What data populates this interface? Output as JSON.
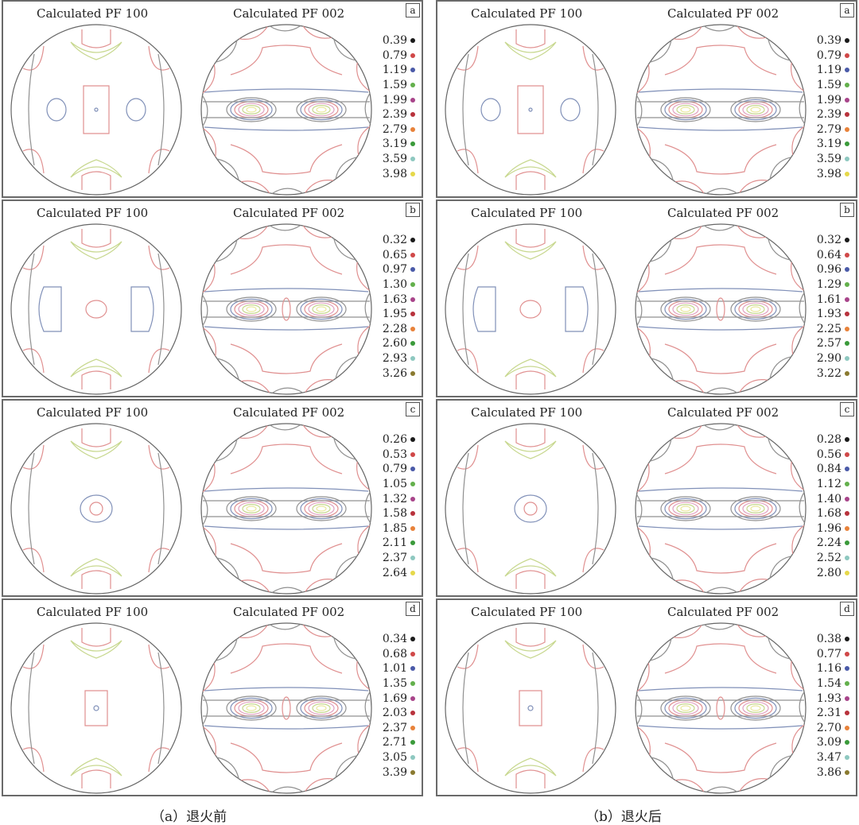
{
  "panel_title_left": "Calculated PF 100",
  "panel_title_right": "Calculated PF 002",
  "level_colors": [
    "#1a1a1a",
    "#d04848",
    "#4a5aa8",
    "#63b04c",
    "#a8448a",
    "#b8323c",
    "#e8823a",
    "#3a9a3a",
    "#8ec8c0",
    "#e6d84a"
  ],
  "level_colors_alt_last": "#8a7a30",
  "contour_colors": {
    "red": "#e09090",
    "blue": "#8090b8",
    "yellow": "#c8d890",
    "gray": "#909090",
    "pink": "#e0a0c0",
    "cream": "#eae8a0"
  },
  "columns": [
    {
      "caption": "（a）退火前",
      "rows": [
        {
          "letter": "a",
          "legend": [
            "0.39",
            "0.79",
            "1.19",
            "1.59",
            "1.99",
            "2.39",
            "2.79",
            "3.19",
            "3.59",
            "3.98"
          ]
        },
        {
          "letter": "b",
          "legend": [
            "0.32",
            "0.65",
            "0.97",
            "1.30",
            "1.63",
            "1.95",
            "2.28",
            "2.60",
            "2.93",
            "3.26"
          ]
        },
        {
          "letter": "c",
          "legend": [
            "0.26",
            "0.53",
            "0.79",
            "1.05",
            "1.32",
            "1.58",
            "1.85",
            "2.11",
            "2.37",
            "2.64"
          ]
        },
        {
          "letter": "d",
          "legend": [
            "0.34",
            "0.68",
            "1.01",
            "1.35",
            "1.69",
            "2.03",
            "2.37",
            "2.71",
            "3.05",
            "3.39"
          ]
        }
      ]
    },
    {
      "caption": "（b）退火后",
      "rows": [
        {
          "letter": "a",
          "legend": [
            "0.39",
            "0.79",
            "1.19",
            "1.59",
            "1.99",
            "2.39",
            "2.79",
            "3.19",
            "3.59",
            "3.98"
          ]
        },
        {
          "letter": "b",
          "legend": [
            "0.32",
            "0.64",
            "0.96",
            "1.29",
            "1.61",
            "1.93",
            "2.25",
            "2.57",
            "2.90",
            "3.22"
          ]
        },
        {
          "letter": "c",
          "legend": [
            "0.28",
            "0.56",
            "0.84",
            "1.12",
            "1.40",
            "1.68",
            "1.96",
            "2.24",
            "2.52",
            "2.80"
          ]
        },
        {
          "letter": "d",
          "legend": [
            "0.38",
            "0.77",
            "1.16",
            "1.54",
            "1.93",
            "2.31",
            "2.70",
            "3.09",
            "3.47",
            "3.86"
          ]
        }
      ]
    }
  ]
}
